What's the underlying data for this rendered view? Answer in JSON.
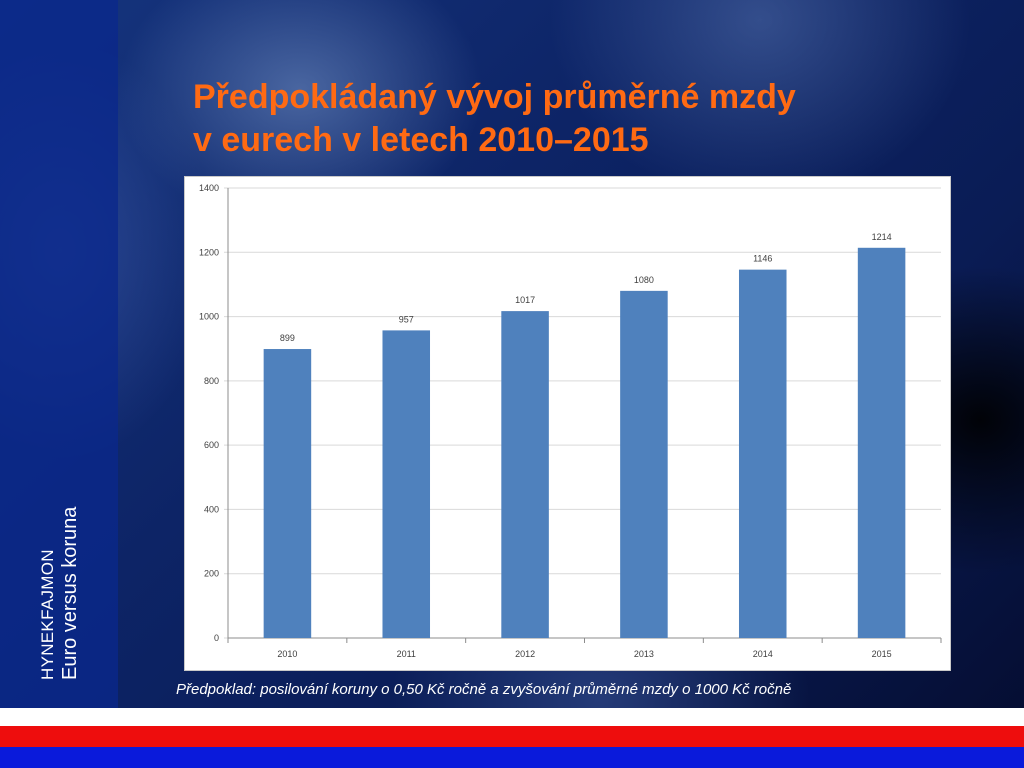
{
  "slide": {
    "title_line1": "Předpokládaný vývoj průměrné mzdy",
    "title_line2": "v eurech v letech 2010–2015",
    "footnote": "Předpoklad: posilování koruny o 0,50 Kč ročně a zvyšování průměrné mzdy o 1000 Kč ročně",
    "author_first": "HYNEK",
    "author_last": "FAJMON",
    "subtitle": "Euro versus koruna",
    "colors": {
      "title": "#ff6a13",
      "bar": "#4f81bd",
      "flag_white": "#ffffff",
      "flag_red": "#ee0d0d",
      "flag_blue": "#0a1adb"
    }
  },
  "chart_data": {
    "type": "bar",
    "categories": [
      "2010",
      "2011",
      "2012",
      "2013",
      "2014",
      "2015"
    ],
    "values": [
      899,
      957,
      1017,
      1080,
      1146,
      1214
    ],
    "data_labels": [
      "899",
      "957",
      "1017",
      "1080",
      "1146",
      "1214"
    ],
    "ylim": [
      0,
      1400
    ],
    "yticks": [
      0,
      200,
      400,
      600,
      800,
      1000,
      1200,
      1400
    ],
    "grid": true,
    "legend": "none"
  }
}
